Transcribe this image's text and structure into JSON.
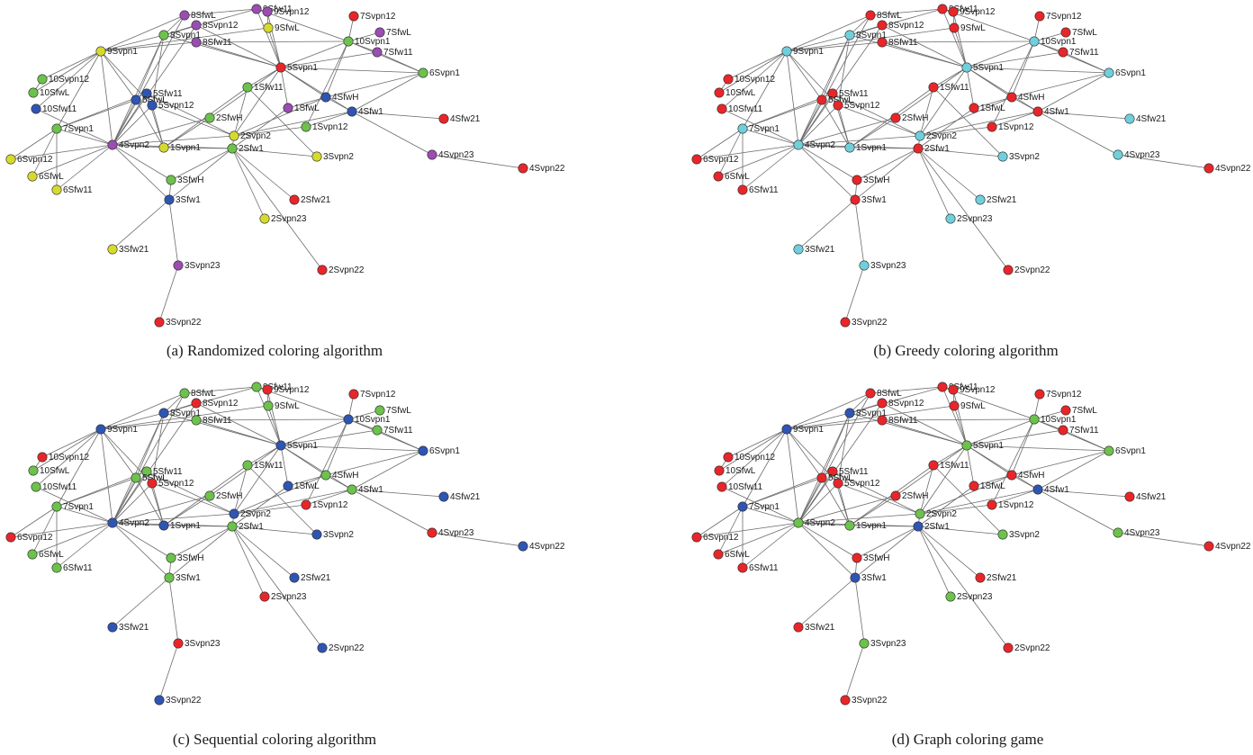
{
  "colors": {
    "red": "#e8262a",
    "green": "#6cc24a",
    "blue": "#2f55b4",
    "purple": "#9b4db1",
    "yellow": "#d6da2c",
    "cyan": "#6fd0dc"
  },
  "nodes": [
    {
      "id": "5Svpn1",
      "label": "5Svpn1"
    },
    {
      "id": "10Svpn1",
      "label": "10Svpn1"
    },
    {
      "id": "6Svpn1",
      "label": "6Svpn1"
    },
    {
      "id": "9Svpn1",
      "label": "9Svpn1"
    },
    {
      "id": "8Svpn1",
      "label": "8Svpn1"
    },
    {
      "id": "8SfwL",
      "label": "8SfwL"
    },
    {
      "id": "8Svpn12",
      "label": "8Svpn12"
    },
    {
      "id": "8Sfw11",
      "label": "8Sfw11"
    },
    {
      "id": "9Sfw11",
      "label": "9Sfw11"
    },
    {
      "id": "9Svpn12",
      "label": "9Svpn12"
    },
    {
      "id": "9SfwL",
      "label": "9SfwL"
    },
    {
      "id": "7Svpn12",
      "label": "7Svpn12"
    },
    {
      "id": "7SfwL",
      "label": "7SfwL"
    },
    {
      "id": "7Sfw11",
      "label": "7Sfw11"
    },
    {
      "id": "10Svpn12",
      "label": "10Svpn12"
    },
    {
      "id": "10SfwL",
      "label": "10SfwL"
    },
    {
      "id": "10Sfw11",
      "label": "10Sfw11"
    },
    {
      "id": "5Sfw11",
      "label": "5Sfw11"
    },
    {
      "id": "5SfwL",
      "label": "5SfwL"
    },
    {
      "id": "5Svpn12",
      "label": "5Svpn12"
    },
    {
      "id": "1Sfw11",
      "label": "1Sfw11"
    },
    {
      "id": "4SfwH",
      "label": "4SfwH"
    },
    {
      "id": "1SfwL",
      "label": "1SfwL"
    },
    {
      "id": "4Sfw1",
      "label": "4Sfw1"
    },
    {
      "id": "4Sfw21",
      "label": "4Sfw21"
    },
    {
      "id": "2SfwH",
      "label": "2SfwH"
    },
    {
      "id": "1Svpn12",
      "label": "1Svpn12"
    },
    {
      "id": "7Svpn1",
      "label": "7Svpn1"
    },
    {
      "id": "4Svpn2",
      "label": "4Svpn2"
    },
    {
      "id": "1Svpn1",
      "label": "1Svpn1"
    },
    {
      "id": "2Svpn2",
      "label": "2Svpn2"
    },
    {
      "id": "2Sfw1",
      "label": "2Sfw1"
    },
    {
      "id": "3Svpn2",
      "label": "3Svpn2"
    },
    {
      "id": "4Svpn23",
      "label": "4Svpn23"
    },
    {
      "id": "4Svpn22",
      "label": "4Svpn22"
    },
    {
      "id": "6Svpn12",
      "label": "6Svpn12"
    },
    {
      "id": "6SfwL",
      "label": "6SfwL"
    },
    {
      "id": "6Sfw11",
      "label": "6Sfw11"
    },
    {
      "id": "3SfwH",
      "label": "3SfwH"
    },
    {
      "id": "3Sfw1",
      "label": "3Sfw1"
    },
    {
      "id": "2Sfw21",
      "label": "2Sfw21"
    },
    {
      "id": "2Svpn23",
      "label": "2Svpn23"
    },
    {
      "id": "3Sfw21",
      "label": "3Sfw21"
    },
    {
      "id": "3Svpn23",
      "label": "3Svpn23"
    },
    {
      "id": "2Svpn22",
      "label": "2Svpn22"
    },
    {
      "id": "3Svpn22",
      "label": "3Svpn22"
    }
  ],
  "edges": [
    [
      "9Svpn1",
      "8Svpn1"
    ],
    [
      "9Svpn1",
      "8SfwL"
    ],
    [
      "9Svpn1",
      "8Sfw11"
    ],
    [
      "9Svpn1",
      "10Svpn12"
    ],
    [
      "9Svpn1",
      "10SfwL"
    ],
    [
      "9Svpn1",
      "10Sfw11"
    ],
    [
      "9Svpn1",
      "7Svpn1"
    ],
    [
      "9Svpn1",
      "4Svpn2"
    ],
    [
      "9Svpn1",
      "5Svpn12"
    ],
    [
      "9Svpn1",
      "5SfwL"
    ],
    [
      "9Svpn1",
      "9SfwL"
    ],
    [
      "8Svpn1",
      "8SfwL"
    ],
    [
      "8Svpn1",
      "8Svpn12"
    ],
    [
      "8Svpn1",
      "4Svpn2"
    ],
    [
      "8Svpn1",
      "5SfwL"
    ],
    [
      "8Svpn1",
      "5Svpn12"
    ],
    [
      "8Svpn1",
      "5Svpn1"
    ],
    [
      "8Svpn1",
      "9Sfw11"
    ],
    [
      "8SfwL",
      "9Sfw11"
    ],
    [
      "8Svpn12",
      "5Svpn1"
    ],
    [
      "8Sfw11",
      "5Svpn1"
    ],
    [
      "8Sfw11",
      "10Svpn1"
    ],
    [
      "9Sfw11",
      "5Svpn1"
    ],
    [
      "9Sfw11",
      "9Svpn12"
    ],
    [
      "9Sfw11",
      "10Svpn1"
    ],
    [
      "9Svpn12",
      "5Svpn1"
    ],
    [
      "9SfwL",
      "5Svpn1"
    ],
    [
      "9SfwL",
      "9Svpn12"
    ],
    [
      "5Svpn1",
      "10Svpn1"
    ],
    [
      "5Svpn1",
      "7Sfw11"
    ],
    [
      "5Svpn1",
      "6Svpn1"
    ],
    [
      "5Svpn1",
      "4SfwH"
    ],
    [
      "5Svpn1",
      "1Sfw11"
    ],
    [
      "5Svpn1",
      "2Svpn2"
    ],
    [
      "5Svpn1",
      "1SfwL"
    ],
    [
      "5Svpn1",
      "4Sfw1"
    ],
    [
      "5Svpn1",
      "2SfwH"
    ],
    [
      "10Svpn1",
      "7Svpn12"
    ],
    [
      "10Svpn1",
      "7SfwL"
    ],
    [
      "10Svpn1",
      "7Sfw11"
    ],
    [
      "10Svpn1",
      "6Svpn1"
    ],
    [
      "10Svpn1",
      "4SfwH"
    ],
    [
      "10Svpn1",
      "1Svpn12"
    ],
    [
      "6Svpn1",
      "4SfwH"
    ],
    [
      "6Svpn1",
      "4Sfw1"
    ],
    [
      "6Svpn1",
      "7Sfw11"
    ],
    [
      "4SfwH",
      "4Sfw1"
    ],
    [
      "4SfwH",
      "1SfwL"
    ],
    [
      "4SfwH",
      "2Svpn2"
    ],
    [
      "4Sfw1",
      "4Sfw21"
    ],
    [
      "4Sfw1",
      "4Svpn23"
    ],
    [
      "4Sfw1",
      "2Svpn2"
    ],
    [
      "4Sfw1",
      "1Svpn12"
    ],
    [
      "4Svpn23",
      "4Svpn22"
    ],
    [
      "1Sfw11",
      "2Svpn2"
    ],
    [
      "1Sfw11",
      "1Svpn1"
    ],
    [
      "1Sfw11",
      "3Svpn2"
    ],
    [
      "1SfwL",
      "2Sfw1"
    ],
    [
      "2SfwH",
      "1Svpn1"
    ],
    [
      "2SfwH",
      "4Svpn2"
    ],
    [
      "2Svpn2",
      "1Svpn12"
    ],
    [
      "2Svpn2",
      "2Sfw1"
    ],
    [
      "2Svpn2",
      "4Svpn2"
    ],
    [
      "2Svpn2",
      "5Svpn12"
    ],
    [
      "2Svpn2",
      "5Sfw11"
    ],
    [
      "2Sfw1",
      "3Svpn2"
    ],
    [
      "2Sfw1",
      "2Sfw21"
    ],
    [
      "2Sfw1",
      "2Svpn23"
    ],
    [
      "2Sfw1",
      "2Svpn22"
    ],
    [
      "2Sfw1",
      "1Svpn1"
    ],
    [
      "2Sfw1",
      "4Svpn2"
    ],
    [
      "2Sfw1",
      "3SfwH"
    ],
    [
      "2Sfw1",
      "3Sfw1"
    ],
    [
      "4Svpn2",
      "7Svpn1"
    ],
    [
      "4Svpn2",
      "1Svpn1"
    ],
    [
      "4Svpn2",
      "3SfwH"
    ],
    [
      "4Svpn2",
      "3Sfw1"
    ],
    [
      "4Svpn2",
      "6Svpn12"
    ],
    [
      "4Svpn2",
      "6SfwL"
    ],
    [
      "4Svpn2",
      "6Sfw11"
    ],
    [
      "4Svpn2",
      "5Sfw11"
    ],
    [
      "4Svpn2",
      "5SfwL"
    ],
    [
      "4Svpn2",
      "5Svpn12"
    ],
    [
      "4Svpn2",
      "10Sfw11"
    ],
    [
      "4Svpn2",
      "8SfwL"
    ],
    [
      "4Svpn2",
      "8Svpn12"
    ],
    [
      "7Svpn1",
      "6Svpn12"
    ],
    [
      "7Svpn1",
      "6SfwL"
    ],
    [
      "7Svpn1",
      "6Sfw11"
    ],
    [
      "7Svpn1",
      "5SfwL"
    ],
    [
      "7Svpn1",
      "5Sfw11"
    ],
    [
      "5Svpn12",
      "1Svpn1"
    ],
    [
      "5Sfw11",
      "1Svpn1"
    ],
    [
      "5SfwL",
      "1Svpn1"
    ],
    [
      "3Sfw1",
      "3Sfw21"
    ],
    [
      "3Sfw1",
      "3Svpn23"
    ],
    [
      "3Svpn23",
      "3Svpn22"
    ],
    [
      "3SfwH",
      "3Sfw1"
    ],
    [
      "10Svpn12",
      "10SfwL"
    ]
  ],
  "panels": [
    {
      "caption": "(a)  Randomized coloring algorithm",
      "colors": {
        "5Svpn1": "red",
        "10Svpn1": "green",
        "6Svpn1": "green",
        "9Svpn1": "yellow",
        "8Svpn1": "green",
        "8SfwL": "purple",
        "8Svpn12": "purple",
        "8Sfw11": "purple",
        "9Sfw11": "purple",
        "9Svpn12": "purple",
        "9SfwL": "yellow",
        "7Svpn12": "red",
        "7SfwL": "purple",
        "7Sfw11": "purple",
        "10Svpn12": "green",
        "10SfwL": "green",
        "10Sfw11": "blue",
        "5Sfw11": "blue",
        "5SfwL": "blue",
        "5Svpn12": "blue",
        "1Sfw11": "green",
        "4SfwH": "blue",
        "1SfwL": "purple",
        "4Sfw1": "blue",
        "4Sfw21": "red",
        "2SfwH": "green",
        "1Svpn12": "green",
        "7Svpn1": "green",
        "4Svpn2": "purple",
        "1Svpn1": "yellow",
        "2Svpn2": "yellow",
        "2Sfw1": "green",
        "3Svpn2": "yellow",
        "4Svpn23": "purple",
        "4Svpn22": "red",
        "6Svpn12": "yellow",
        "6SfwL": "yellow",
        "6Sfw11": "yellow",
        "3SfwH": "green",
        "3Sfw1": "blue",
        "2Sfw21": "red",
        "2Svpn23": "yellow",
        "3Sfw21": "yellow",
        "3Svpn23": "purple",
        "2Svpn22": "red",
        "3Svpn22": "red"
      }
    },
    {
      "caption": "(b)  Greedy coloring algorithm",
      "colors": {
        "5Svpn1": "cyan",
        "10Svpn1": "cyan",
        "6Svpn1": "cyan",
        "9Svpn1": "cyan",
        "8Svpn1": "cyan",
        "8SfwL": "red",
        "8Svpn12": "red",
        "8Sfw11": "red",
        "9Sfw11": "red",
        "9Svpn12": "red",
        "9SfwL": "red",
        "7Svpn12": "red",
        "7SfwL": "red",
        "7Sfw11": "red",
        "10Svpn12": "red",
        "10SfwL": "red",
        "10Sfw11": "red",
        "5Sfw11": "red",
        "5SfwL": "red",
        "5Svpn12": "red",
        "1Sfw11": "red",
        "4SfwH": "red",
        "1SfwL": "red",
        "4Sfw1": "red",
        "4Sfw21": "cyan",
        "2SfwH": "red",
        "1Svpn12": "red",
        "7Svpn1": "cyan",
        "4Svpn2": "cyan",
        "1Svpn1": "cyan",
        "2Svpn2": "cyan",
        "2Sfw1": "red",
        "3Svpn2": "cyan",
        "4Svpn23": "cyan",
        "4Svpn22": "red",
        "6Svpn12": "red",
        "6SfwL": "red",
        "6Sfw11": "red",
        "3SfwH": "red",
        "3Sfw1": "red",
        "2Sfw21": "cyan",
        "2Svpn23": "cyan",
        "3Sfw21": "cyan",
        "3Svpn23": "cyan",
        "2Svpn22": "red",
        "3Svpn22": "red"
      }
    },
    {
      "caption": "(c)  Sequential coloring algorithm",
      "colors": {
        "5Svpn1": "blue",
        "10Svpn1": "blue",
        "6Svpn1": "blue",
        "9Svpn1": "blue",
        "8Svpn1": "blue",
        "8SfwL": "green",
        "8Svpn12": "red",
        "8Sfw11": "green",
        "9Sfw11": "green",
        "9Svpn12": "red",
        "9SfwL": "green",
        "7Svpn12": "red",
        "7SfwL": "green",
        "7Sfw11": "green",
        "10Svpn12": "red",
        "10SfwL": "green",
        "10Sfw11": "green",
        "5Sfw11": "green",
        "5SfwL": "green",
        "5Svpn12": "red",
        "1Sfw11": "green",
        "4SfwH": "green",
        "1SfwL": "blue",
        "4Sfw1": "green",
        "4Sfw21": "blue",
        "2SfwH": "green",
        "1Svpn12": "red",
        "7Svpn1": "green",
        "4Svpn2": "blue",
        "1Svpn1": "blue",
        "2Svpn2": "blue",
        "2Sfw1": "green",
        "3Svpn2": "blue",
        "4Svpn23": "red",
        "4Svpn22": "blue",
        "6Svpn12": "red",
        "6SfwL": "green",
        "6Sfw11": "green",
        "3SfwH": "green",
        "3Sfw1": "green",
        "2Sfw21": "blue",
        "2Svpn23": "red",
        "3Sfw21": "blue",
        "3Svpn23": "red",
        "2Svpn22": "blue",
        "3Svpn22": "blue"
      }
    },
    {
      "caption": "(d) Graph coloring game",
      "colors": {
        "5Svpn1": "green",
        "10Svpn1": "green",
        "6Svpn1": "green",
        "9Svpn1": "blue",
        "8Svpn1": "blue",
        "8SfwL": "red",
        "8Svpn12": "red",
        "8Sfw11": "red",
        "9Sfw11": "red",
        "9Svpn12": "red",
        "9SfwL": "red",
        "7Svpn12": "red",
        "7SfwL": "red",
        "7Sfw11": "red",
        "10Svpn12": "red",
        "10SfwL": "red",
        "10Sfw11": "red",
        "5Sfw11": "red",
        "5SfwL": "red",
        "5Svpn12": "red",
        "1Sfw11": "red",
        "4SfwH": "red",
        "1SfwL": "red",
        "4Sfw1": "blue",
        "4Sfw21": "red",
        "2SfwH": "red",
        "1Svpn12": "red",
        "7Svpn1": "blue",
        "4Svpn2": "green",
        "1Svpn1": "green",
        "2Svpn2": "green",
        "2Sfw1": "blue",
        "3Svpn2": "green",
        "4Svpn23": "green",
        "4Svpn22": "red",
        "6Svpn12": "red",
        "6SfwL": "red",
        "6Sfw11": "red",
        "3SfwH": "red",
        "3Sfw1": "blue",
        "2Sfw21": "red",
        "2Svpn23": "green",
        "3Sfw21": "red",
        "3Svpn23": "green",
        "2Svpn22": "red",
        "3Svpn22": "red"
      }
    }
  ]
}
